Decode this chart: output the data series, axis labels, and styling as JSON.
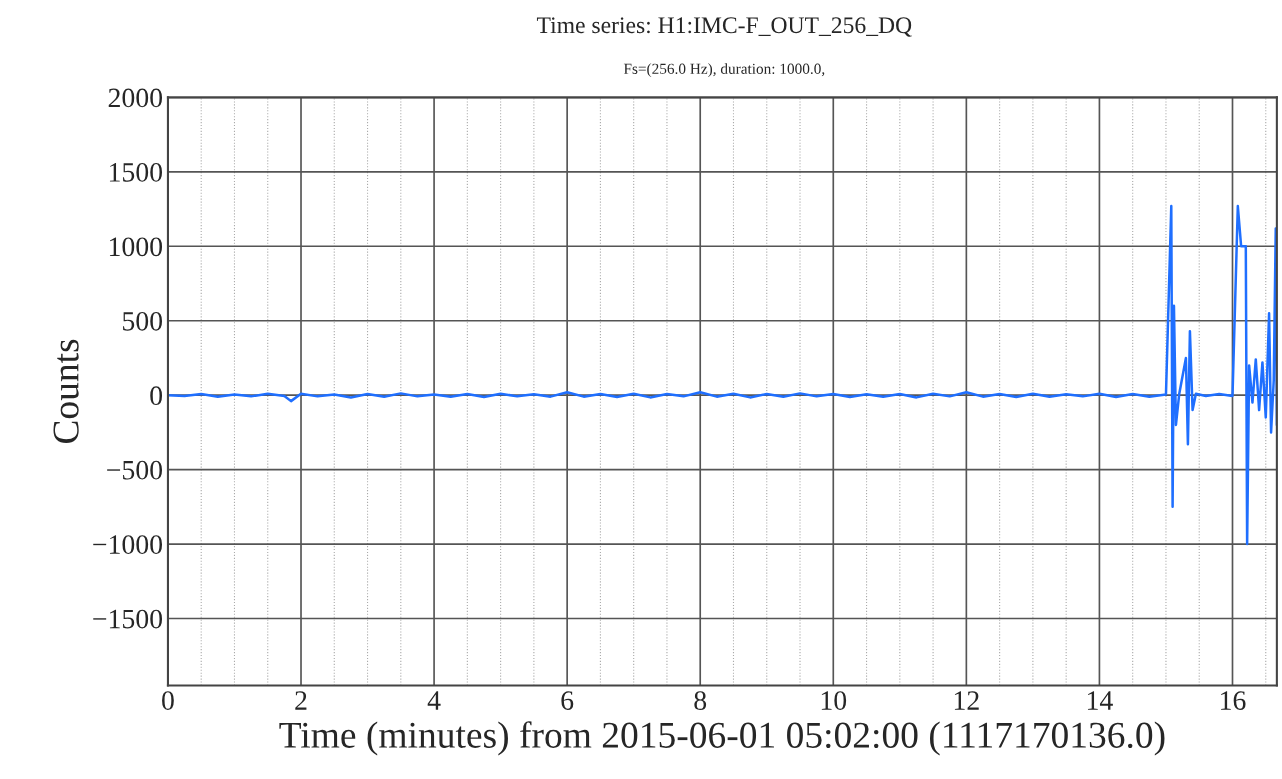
{
  "chart_data": {
    "type": "line",
    "title": "Time series: H1:IMC-F_OUT_256_DQ",
    "subtitle": "Fs=(256.0 Hz), duration: 1000.0,",
    "xlabel": "Time (minutes) from 2015-06-01 05:02:00 (1117170136.0)",
    "ylabel": "Counts",
    "x": [
      0,
      0.25,
      0.5,
      0.75,
      1.0,
      1.25,
      1.5,
      1.75,
      1.85,
      2.0,
      2.25,
      2.5,
      2.75,
      3.0,
      3.25,
      3.5,
      3.75,
      4.0,
      4.25,
      4.5,
      4.75,
      5.0,
      5.25,
      5.5,
      5.75,
      6.0,
      6.25,
      6.5,
      6.75,
      7.0,
      7.25,
      7.5,
      7.75,
      8.0,
      8.25,
      8.5,
      8.75,
      9.0,
      9.25,
      9.5,
      9.75,
      10.0,
      10.25,
      10.5,
      10.75,
      11.0,
      11.25,
      11.5,
      11.75,
      12.0,
      12.25,
      12.5,
      12.75,
      13.0,
      13.25,
      13.5,
      13.75,
      14.0,
      14.25,
      14.5,
      14.75,
      15.0,
      15.08,
      15.1,
      15.12,
      15.15,
      15.2,
      15.3,
      15.33,
      15.36,
      15.4,
      15.45,
      15.6,
      15.8,
      16.0,
      16.08,
      16.1,
      16.13,
      16.16,
      16.18,
      16.2,
      16.22,
      16.25,
      16.3,
      16.35,
      16.4,
      16.45,
      16.5,
      16.55,
      16.58,
      16.62,
      16.65,
      16.667
    ],
    "series": [
      {
        "color": "#1f6fff",
        "values": [
          0,
          -5,
          8,
          -10,
          5,
          -8,
          10,
          -5,
          -40,
          10,
          -8,
          5,
          -15,
          8,
          -10,
          12,
          -8,
          5,
          -10,
          8,
          -12,
          10,
          -8,
          6,
          -10,
          20,
          -10,
          8,
          -12,
          10,
          -15,
          8,
          -8,
          20,
          -10,
          10,
          -15,
          8,
          -10,
          12,
          -8,
          8,
          -12,
          6,
          -10,
          8,
          -15,
          10,
          -8,
          20,
          -10,
          8,
          -12,
          10,
          -10,
          6,
          -8,
          10,
          -12,
          8,
          -10,
          5,
          1270,
          -750,
          600,
          -200,
          10,
          250,
          -330,
          430,
          -100,
          10,
          -5,
          8,
          -5,
          1270,
          null,
          1000,
          null,
          null,
          1000,
          -1000,
          200,
          -50,
          240,
          -100,
          220,
          -150,
          550,
          -250,
          100,
          1120,
          -200
        ]
      }
    ],
    "xlim": [
      0,
      16.667
    ],
    "ylim": [
      -1950,
      2000
    ],
    "xticks": [
      0,
      {
        "value": 0.5,
        "label": null
      },
      {
        "value": 1,
        "label": null
      },
      {
        "value": 1.5,
        "label": null
      },
      2,
      {
        "value": 2.5,
        "label": null
      },
      {
        "value": 3,
        "label": null
      },
      {
        "value": 3.5,
        "label": null
      },
      4,
      {
        "value": 4.5,
        "label": null
      },
      {
        "value": 5,
        "label": null
      },
      {
        "value": 5.5,
        "label": null
      },
      6,
      {
        "value": 6.5,
        "label": null
      },
      {
        "value": 7,
        "label": null
      },
      {
        "value": 7.5,
        "label": null
      },
      8,
      {
        "value": 8.5,
        "label": null
      },
      {
        "value": 9,
        "label": null
      },
      {
        "value": 9.5,
        "label": null
      },
      10,
      {
        "value": 10.5,
        "label": null
      },
      {
        "value": 11,
        "label": null
      },
      {
        "value": 11.5,
        "label": null
      },
      12,
      {
        "value": 12.5,
        "label": null
      },
      {
        "value": 13,
        "label": null
      },
      {
        "value": 13.5,
        "label": null
      },
      14,
      {
        "value": 14.5,
        "label": null
      },
      {
        "value": 15,
        "label": null
      },
      {
        "value": 15.5,
        "label": null
      },
      16,
      {
        "value": 16.5,
        "label": null
      }
    ],
    "yticks": [
      {
        "value": -1500,
        "label": "−1500"
      },
      {
        "value": -1000,
        "label": "−1000"
      },
      {
        "value": -500,
        "label": "−500"
      },
      0,
      500,
      1000,
      1500,
      2000
    ],
    "grid": true,
    "line_style": "solid",
    "marker": "none"
  }
}
